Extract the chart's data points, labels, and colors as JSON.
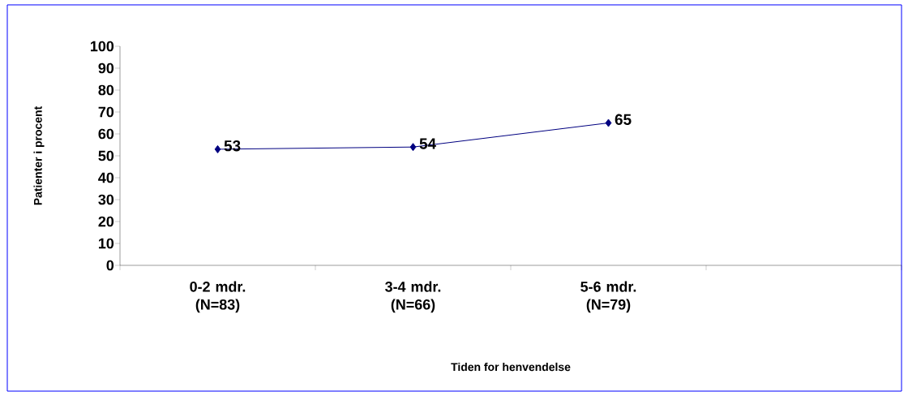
{
  "chart_data": {
    "type": "line",
    "xlabel": "Tiden for henvendelse",
    "ylabel": "Patienter i procent",
    "categories": [
      "0-2 mdr. (N=83)",
      "3-4 mdr. (N=66)",
      "5-6 mdr. (N=79)",
      null
    ],
    "series": [
      {
        "color": "#000080",
        "values": [
          53,
          54,
          65,
          null
        ]
      }
    ],
    "ylim": [
      0,
      100
    ],
    "yticks": [
      0,
      10,
      20,
      30,
      40,
      50,
      60,
      70,
      80,
      90,
      100
    ],
    "marker": "diamond",
    "line_style": "solid",
    "data_labels": true,
    "grid": false
  }
}
